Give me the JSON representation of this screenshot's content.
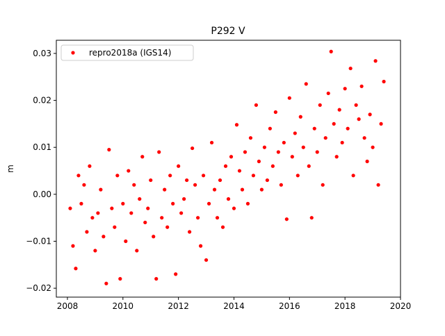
{
  "chart_data": {
    "type": "scatter",
    "title": "P292 V",
    "ylabel": "m",
    "legend": "upper left",
    "grid": false,
    "xlim": [
      2007.6,
      2020.0
    ],
    "xticks": [
      2008,
      2010,
      2012,
      2014,
      2016,
      2018,
      2020
    ],
    "ylim": [
      -0.0219,
      0.0328
    ],
    "yticks": [
      {
        "value": -0.02,
        "label": "−0.02"
      },
      {
        "value": -0.01,
        "label": "−0.01"
      },
      {
        "value": 0,
        "label": "0.00"
      },
      0.01,
      0.02,
      0.03
    ],
    "series": [
      {
        "name": "repro2018a (IGS14)",
        "color": "#ff0000",
        "x": [
          2008.1,
          2008.2,
          2008.3,
          2008.4,
          2008.5,
          2008.6,
          2008.7,
          2008.8,
          2008.9,
          2009.0,
          2009.1,
          2009.2,
          2009.3,
          2009.4,
          2009.5,
          2009.6,
          2009.7,
          2009.8,
          2009.9,
          2010.0,
          2010.1,
          2010.2,
          2010.3,
          2010.4,
          2010.5,
          2010.6,
          2010.7,
          2010.8,
          2010.9,
          2011.0,
          2011.1,
          2011.2,
          2011.3,
          2011.4,
          2011.5,
          2011.6,
          2011.7,
          2011.8,
          2011.9,
          2012.0,
          2012.1,
          2012.2,
          2012.3,
          2012.4,
          2012.5,
          2012.6,
          2012.7,
          2012.8,
          2012.9,
          2013.0,
          2013.1,
          2013.2,
          2013.3,
          2013.4,
          2013.5,
          2013.6,
          2013.7,
          2013.8,
          2013.9,
          2014.0,
          2014.1,
          2014.2,
          2014.3,
          2014.4,
          2014.5,
          2014.6,
          2014.7,
          2014.8,
          2014.9,
          2015.0,
          2015.1,
          2015.2,
          2015.3,
          2015.4,
          2015.5,
          2015.6,
          2015.7,
          2015.8,
          2015.9,
          2016.0,
          2016.1,
          2016.2,
          2016.3,
          2016.4,
          2016.5,
          2016.6,
          2016.7,
          2016.8,
          2016.9,
          2017.0,
          2017.1,
          2017.2,
          2017.3,
          2017.4,
          2017.5,
          2017.6,
          2017.7,
          2017.8,
          2017.9,
          2018.0,
          2018.1,
          2018.2,
          2018.3,
          2018.4,
          2018.5,
          2018.6,
          2018.7,
          2018.8,
          2018.9,
          2019.0,
          2019.1,
          2019.2,
          2019.3,
          2019.4
        ],
        "values": [
          -0.003,
          -0.011,
          -0.0158,
          0.004,
          -0.002,
          0.002,
          -0.008,
          0.006,
          -0.005,
          -0.012,
          -0.004,
          0.001,
          -0.009,
          -0.019,
          0.0095,
          -0.003,
          -0.007,
          0.004,
          -0.018,
          -0.002,
          -0.01,
          0.005,
          -0.004,
          0.002,
          -0.012,
          -0.001,
          0.008,
          -0.006,
          -0.003,
          0.003,
          -0.009,
          -0.018,
          0.009,
          -0.005,
          0.001,
          -0.007,
          0.004,
          -0.002,
          -0.017,
          0.006,
          -0.004,
          -0.001,
          0.003,
          -0.008,
          0.0098,
          0.002,
          -0.005,
          -0.011,
          0.004,
          -0.014,
          -0.002,
          0.011,
          0.001,
          -0.005,
          0.003,
          -0.007,
          0.006,
          -0.001,
          0.008,
          -0.003,
          0.0148,
          0.005,
          0.001,
          0.009,
          -0.002,
          0.012,
          0.004,
          0.019,
          0.007,
          0.001,
          0.01,
          0.003,
          0.014,
          0.006,
          0.0175,
          0.009,
          0.002,
          0.011,
          -0.0053,
          0.0205,
          0.008,
          0.013,
          0.004,
          0.0165,
          0.01,
          0.0235,
          0.006,
          -0.005,
          0.014,
          0.009,
          0.019,
          0.002,
          0.012,
          0.0215,
          0.0304,
          0.015,
          0.008,
          0.018,
          0.011,
          0.0225,
          0.014,
          0.0268,
          0.004,
          0.019,
          0.016,
          0.023,
          0.012,
          0.007,
          0.017,
          0.01,
          0.0284,
          0.002,
          0.015,
          0.024
        ]
      }
    ]
  }
}
